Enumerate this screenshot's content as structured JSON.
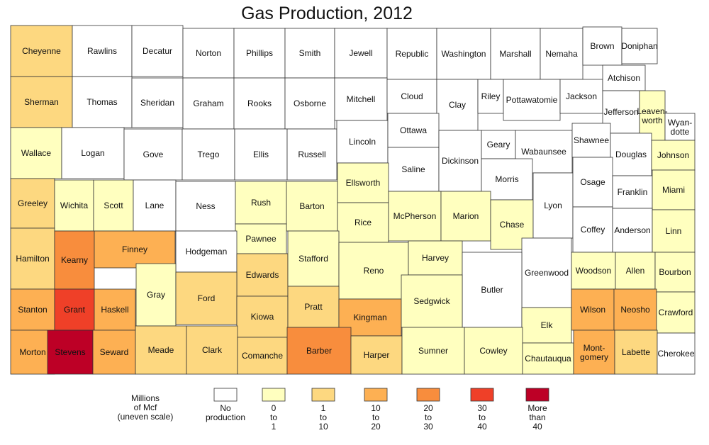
{
  "title": "Gas Production, 2012",
  "legend": {
    "caption": [
      "Millions",
      "of Mcf",
      "(uneven scale)"
    ],
    "classes": [
      {
        "key": "none",
        "color": "#ffffff",
        "lines": [
          "No",
          "production"
        ]
      },
      {
        "key": "c1",
        "color": "#ffffbf",
        "lines": [
          "0",
          "to",
          "1"
        ]
      },
      {
        "key": "c2",
        "color": "#fdd880",
        "lines": [
          "1",
          "to",
          "10"
        ]
      },
      {
        "key": "c3",
        "color": "#fdb053",
        "lines": [
          "10",
          "to",
          "20"
        ]
      },
      {
        "key": "c4",
        "color": "#f88d3d",
        "lines": [
          "20",
          "to",
          "30"
        ]
      },
      {
        "key": "c5",
        "color": "#ef4028",
        "lines": [
          "30",
          "to",
          "40"
        ]
      },
      {
        "key": "c6",
        "color": "#bd0026",
        "lines": [
          "More",
          "than",
          "40"
        ]
      }
    ]
  },
  "counties": [
    {
      "name": "Cheyenne",
      "class": "c2"
    },
    {
      "name": "Rawlins",
      "class": "none"
    },
    {
      "name": "Decatur",
      "class": "none"
    },
    {
      "name": "Norton",
      "class": "none"
    },
    {
      "name": "Phillips",
      "class": "none"
    },
    {
      "name": "Smith",
      "class": "none"
    },
    {
      "name": "Jewell",
      "class": "none"
    },
    {
      "name": "Republic",
      "class": "none"
    },
    {
      "name": "Washington",
      "class": "none"
    },
    {
      "name": "Marshall",
      "class": "none"
    },
    {
      "name": "Nemaha",
      "class": "none"
    },
    {
      "name": "Brown",
      "class": "none"
    },
    {
      "name": "Doniphan",
      "class": "none"
    },
    {
      "name": "Sherman",
      "class": "c2"
    },
    {
      "name": "Thomas",
      "class": "none"
    },
    {
      "name": "Sheridan",
      "class": "none"
    },
    {
      "name": "Graham",
      "class": "none"
    },
    {
      "name": "Rooks",
      "class": "none"
    },
    {
      "name": "Osborne",
      "class": "none"
    },
    {
      "name": "Mitchell",
      "class": "none"
    },
    {
      "name": "Cloud",
      "class": "none"
    },
    {
      "name": "Clay",
      "class": "none"
    },
    {
      "name": "Riley",
      "class": "none"
    },
    {
      "name": "Pottawatomie",
      "class": "none"
    },
    {
      "name": "Jackson",
      "class": "none"
    },
    {
      "name": "Atchison",
      "class": "none"
    },
    {
      "name": "Jefferson",
      "class": "none"
    },
    {
      "name": "Leaven-worth",
      "lines": [
        "Leaven-",
        "worth"
      ],
      "class": "c1"
    },
    {
      "name": "Wyan-dotte",
      "lines": [
        "Wyan-",
        "dotte"
      ],
      "class": "none"
    },
    {
      "name": "Wallace",
      "class": "c1"
    },
    {
      "name": "Logan",
      "class": "none"
    },
    {
      "name": "Gove",
      "class": "none"
    },
    {
      "name": "Trego",
      "class": "none"
    },
    {
      "name": "Ellis",
      "class": "none"
    },
    {
      "name": "Russell",
      "class": "none"
    },
    {
      "name": "Lincoln",
      "class": "none"
    },
    {
      "name": "Ottawa",
      "class": "none"
    },
    {
      "name": "Saline",
      "class": "none"
    },
    {
      "name": "Dickinson",
      "class": "none"
    },
    {
      "name": "Geary",
      "class": "none"
    },
    {
      "name": "Wabaunsee",
      "class": "none"
    },
    {
      "name": "Shawnee",
      "class": "none"
    },
    {
      "name": "Douglas",
      "class": "none"
    },
    {
      "name": "Johnson",
      "class": "c1"
    },
    {
      "name": "Morris",
      "class": "none"
    },
    {
      "name": "Greeley",
      "class": "c2"
    },
    {
      "name": "Wichita",
      "class": "c1"
    },
    {
      "name": "Scott",
      "class": "c1"
    },
    {
      "name": "Lane",
      "class": "none"
    },
    {
      "name": "Ness",
      "class": "none"
    },
    {
      "name": "Rush",
      "class": "c1"
    },
    {
      "name": "Barton",
      "class": "c1"
    },
    {
      "name": "Ellsworth",
      "class": "c1"
    },
    {
      "name": "Rice",
      "class": "c1"
    },
    {
      "name": "McPherson",
      "class": "c1"
    },
    {
      "name": "Marion",
      "class": "c1"
    },
    {
      "name": "Chase",
      "class": "c1"
    },
    {
      "name": "Lyon",
      "class": "none"
    },
    {
      "name": "Osage",
      "class": "none"
    },
    {
      "name": "Franklin",
      "class": "none"
    },
    {
      "name": "Miami",
      "class": "c1"
    },
    {
      "name": "Pawnee",
      "class": "c1"
    },
    {
      "name": "Coffey",
      "class": "none"
    },
    {
      "name": "Anderson",
      "class": "none"
    },
    {
      "name": "Linn",
      "class": "c1"
    },
    {
      "name": "Hamilton",
      "class": "c2"
    },
    {
      "name": "Kearny",
      "class": "c4"
    },
    {
      "name": "Finney",
      "class": "c3"
    },
    {
      "name": "Hodgeman",
      "class": "none"
    },
    {
      "name": "Edwards",
      "class": "c2"
    },
    {
      "name": "Stafford",
      "class": "c1"
    },
    {
      "name": "Reno",
      "class": "c1"
    },
    {
      "name": "Harvey",
      "class": "c1"
    },
    {
      "name": "Greenwood",
      "class": "none"
    },
    {
      "name": "Woodson",
      "class": "c1"
    },
    {
      "name": "Allen",
      "class": "c1"
    },
    {
      "name": "Bourbon",
      "class": "c1"
    },
    {
      "name": "Gray",
      "class": "c1"
    },
    {
      "name": "Ford",
      "class": "c2"
    },
    {
      "name": "Butler",
      "class": "none"
    },
    {
      "name": "Stanton",
      "class": "c3"
    },
    {
      "name": "Grant",
      "class": "c5"
    },
    {
      "name": "Haskell",
      "class": "c3"
    },
    {
      "name": "Kiowa",
      "class": "c2"
    },
    {
      "name": "Pratt",
      "class": "c2"
    },
    {
      "name": "Kingman",
      "class": "c3"
    },
    {
      "name": "Sedgwick",
      "class": "c1"
    },
    {
      "name": "Elk",
      "class": "c1"
    },
    {
      "name": "Wilson",
      "class": "c3"
    },
    {
      "name": "Neosho",
      "class": "c3"
    },
    {
      "name": "Crawford",
      "class": "c1"
    },
    {
      "name": "Morton",
      "class": "c3"
    },
    {
      "name": "Stevens",
      "class": "c6"
    },
    {
      "name": "Seward",
      "class": "c3"
    },
    {
      "name": "Meade",
      "class": "c2"
    },
    {
      "name": "Clark",
      "class": "c2"
    },
    {
      "name": "Comanche",
      "class": "c2"
    },
    {
      "name": "Barber",
      "class": "c4"
    },
    {
      "name": "Harper",
      "class": "c2"
    },
    {
      "name": "Sumner",
      "class": "c1"
    },
    {
      "name": "Cowley",
      "class": "c1"
    },
    {
      "name": "Chautauqua",
      "class": "c1"
    },
    {
      "name": "Mont-gomery",
      "lines": [
        "Mont-",
        "gomery"
      ],
      "class": "c3"
    },
    {
      "name": "Labette",
      "class": "c2"
    },
    {
      "name": "Cherokee",
      "class": "none"
    }
  ]
}
